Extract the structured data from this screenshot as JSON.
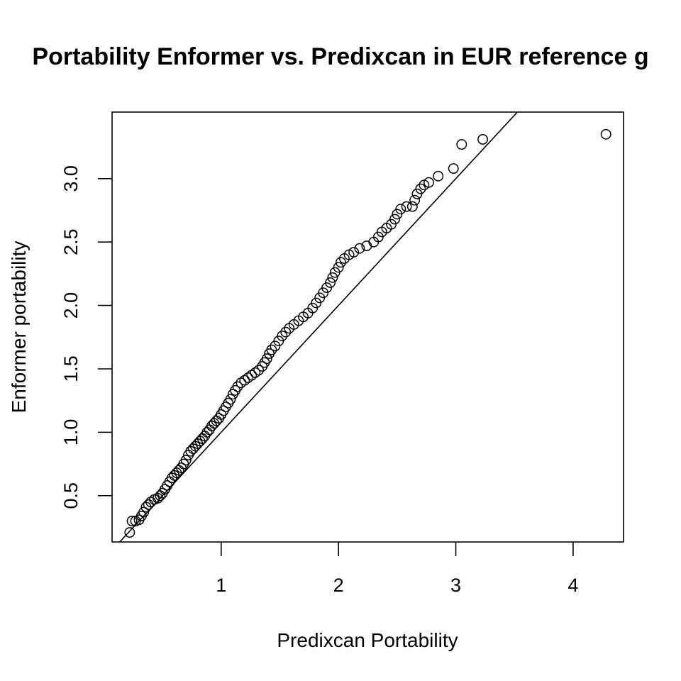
{
  "chart_data": {
    "type": "scatter",
    "title": "Portability Enformer vs. Predixcan in EUR reference g",
    "xlabel": "Predixcan Portability",
    "ylabel": "Enformer portability",
    "xlim": [
      0.07,
      4.43
    ],
    "ylim": [
      0.135,
      3.525
    ],
    "xticks": [
      1,
      2,
      3,
      4
    ],
    "xtick_labels": [
      "1",
      "2",
      "3",
      "4"
    ],
    "yticks": [
      0.5,
      1.0,
      1.5,
      2.0,
      2.5,
      3.0
    ],
    "ytick_labels": [
      "0.5",
      "1.0",
      "1.5",
      "2.0",
      "2.5",
      "3.0"
    ],
    "reference_line": {
      "intercept": 0,
      "slope": 1
    },
    "grid": false,
    "legend": "none",
    "points": [
      [
        0.22,
        0.21
      ],
      [
        0.24,
        0.3
      ],
      [
        0.27,
        0.3
      ],
      [
        0.3,
        0.31
      ],
      [
        0.32,
        0.34
      ],
      [
        0.34,
        0.37
      ],
      [
        0.36,
        0.41
      ],
      [
        0.38,
        0.43
      ],
      [
        0.4,
        0.45
      ],
      [
        0.43,
        0.47
      ],
      [
        0.46,
        0.48
      ],
      [
        0.48,
        0.5
      ],
      [
        0.5,
        0.52
      ],
      [
        0.52,
        0.55
      ],
      [
        0.54,
        0.58
      ],
      [
        0.56,
        0.61
      ],
      [
        0.58,
        0.64
      ],
      [
        0.6,
        0.66
      ],
      [
        0.62,
        0.68
      ],
      [
        0.64,
        0.7
      ],
      [
        0.66,
        0.72
      ],
      [
        0.68,
        0.75
      ],
      [
        0.7,
        0.78
      ],
      [
        0.72,
        0.82
      ],
      [
        0.74,
        0.85
      ],
      [
        0.76,
        0.87
      ],
      [
        0.78,
        0.89
      ],
      [
        0.8,
        0.91
      ],
      [
        0.82,
        0.93
      ],
      [
        0.84,
        0.95
      ],
      [
        0.86,
        0.97
      ],
      [
        0.88,
        1.0
      ],
      [
        0.9,
        1.02
      ],
      [
        0.92,
        1.05
      ],
      [
        0.94,
        1.07
      ],
      [
        0.96,
        1.09
      ],
      [
        0.98,
        1.11
      ],
      [
        1.0,
        1.14
      ],
      [
        1.02,
        1.17
      ],
      [
        1.04,
        1.2
      ],
      [
        1.06,
        1.23
      ],
      [
        1.08,
        1.26
      ],
      [
        1.1,
        1.3
      ],
      [
        1.12,
        1.33
      ],
      [
        1.14,
        1.36
      ],
      [
        1.17,
        1.39
      ],
      [
        1.2,
        1.41
      ],
      [
        1.23,
        1.43
      ],
      [
        1.26,
        1.45
      ],
      [
        1.29,
        1.47
      ],
      [
        1.32,
        1.49
      ],
      [
        1.35,
        1.52
      ],
      [
        1.37,
        1.55
      ],
      [
        1.39,
        1.58
      ],
      [
        1.41,
        1.62
      ],
      [
        1.43,
        1.65
      ],
      [
        1.46,
        1.68
      ],
      [
        1.49,
        1.72
      ],
      [
        1.52,
        1.76
      ],
      [
        1.55,
        1.79
      ],
      [
        1.58,
        1.82
      ],
      [
        1.62,
        1.85
      ],
      [
        1.66,
        1.88
      ],
      [
        1.7,
        1.91
      ],
      [
        1.74,
        1.94
      ],
      [
        1.78,
        1.98
      ],
      [
        1.81,
        2.02
      ],
      [
        1.84,
        2.06
      ],
      [
        1.87,
        2.1
      ],
      [
        1.9,
        2.14
      ],
      [
        1.93,
        2.18
      ],
      [
        1.95,
        2.22
      ],
      [
        1.97,
        2.26
      ],
      [
        2.0,
        2.3
      ],
      [
        2.02,
        2.34
      ],
      [
        2.05,
        2.37
      ],
      [
        2.09,
        2.4
      ],
      [
        2.13,
        2.42
      ],
      [
        2.18,
        2.45
      ],
      [
        2.24,
        2.47
      ],
      [
        2.3,
        2.5
      ],
      [
        2.34,
        2.54
      ],
      [
        2.37,
        2.58
      ],
      [
        2.41,
        2.61
      ],
      [
        2.45,
        2.64
      ],
      [
        2.48,
        2.68
      ],
      [
        2.5,
        2.72
      ],
      [
        2.53,
        2.76
      ],
      [
        2.58,
        2.78
      ],
      [
        2.63,
        2.78
      ],
      [
        2.65,
        2.83
      ],
      [
        2.67,
        2.88
      ],
      [
        2.7,
        2.92
      ],
      [
        2.73,
        2.95
      ],
      [
        2.77,
        2.97
      ],
      [
        2.85,
        3.02
      ],
      [
        2.98,
        3.08
      ],
      [
        3.05,
        3.27
      ],
      [
        3.23,
        3.31
      ],
      [
        4.28,
        3.35
      ]
    ]
  }
}
